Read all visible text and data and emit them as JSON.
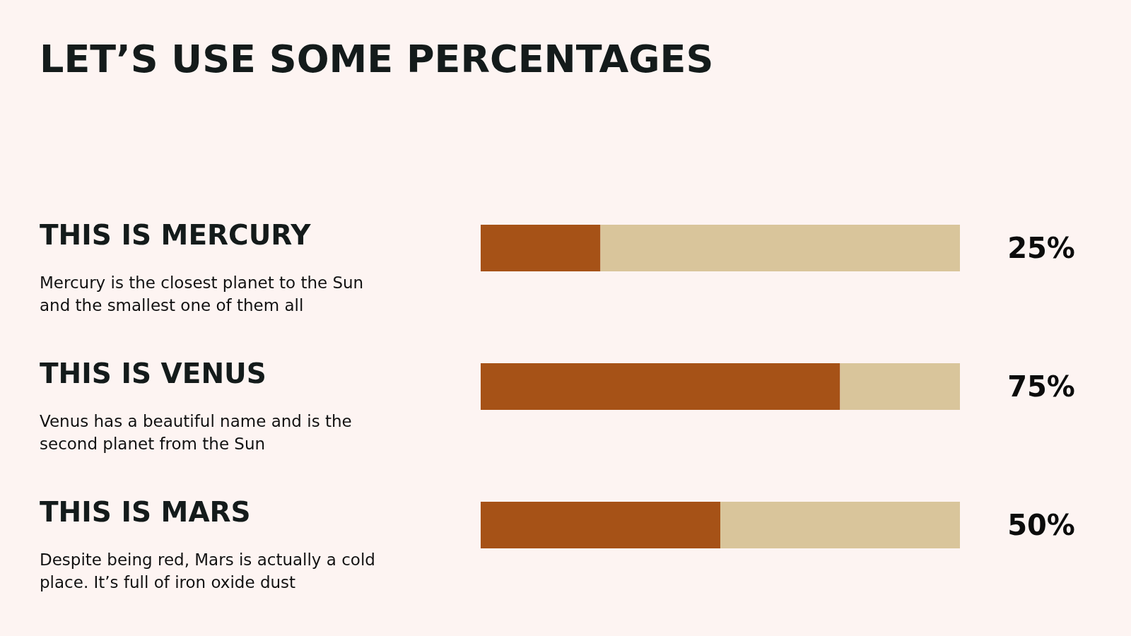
{
  "chart_data": {
    "type": "bar",
    "orientation": "horizontal",
    "stacked": true,
    "title": "LET’S USE SOME PERCENTAGES",
    "categories": [
      "THIS IS MERCURY",
      "THIS IS VENUS",
      "THIS IS MARS"
    ],
    "series": [
      {
        "color": "#a65217",
        "values": [
          25,
          75,
          50
        ],
        "value_labels": [
          "25%",
          "75%",
          "50%"
        ]
      },
      {
        "color": "#d9c59b",
        "values": [
          75,
          25,
          50
        ]
      }
    ],
    "xlim": [
      0,
      100
    ],
    "tick_labels": "y",
    "grid": false,
    "legend": false,
    "annotations": [
      "Mercury is the closest planet to the Sun and the smallest one of them all",
      "Venus has a beautiful name and is the second planet from the Sun",
      "Despite being red, Mars is actually a cold place. It’s full of iron oxide dust"
    ]
  }
}
